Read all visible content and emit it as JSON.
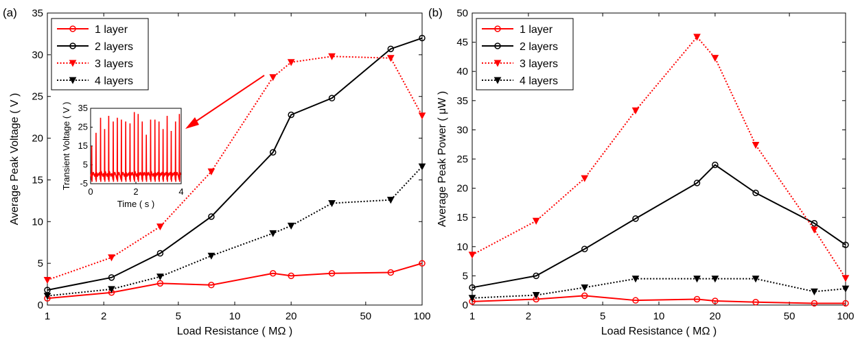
{
  "chart_data": [
    {
      "type": "line",
      "panel_label": "(a)",
      "xlabel": "Load Resistance ( MΩ )",
      "ylabel": "Average Peak Voltage ( V )",
      "xscale": "log",
      "xlim": [
        1,
        100
      ],
      "ylim": [
        0,
        35
      ],
      "x_ticks": [
        1,
        2,
        5,
        10,
        20,
        50,
        100
      ],
      "y_ticks": [
        0,
        5,
        10,
        15,
        20,
        25,
        30,
        35
      ],
      "legend_position": "top-left",
      "grid": false,
      "series": [
        {
          "name": "1 layer",
          "color": "#ff0000",
          "line": "solid",
          "marker": "circle",
          "x": [
            1,
            2.2,
            4,
            7.5,
            16,
            20,
            33,
            68,
            100
          ],
          "y": [
            0.8,
            1.5,
            2.6,
            2.4,
            3.8,
            3.5,
            3.8,
            3.9,
            5.0
          ]
        },
        {
          "name": "2 layers",
          "color": "#000000",
          "line": "solid",
          "marker": "circle",
          "x": [
            1,
            2.2,
            4,
            7.5,
            16,
            20,
            33,
            68,
            100
          ],
          "y": [
            1.8,
            3.3,
            6.2,
            10.6,
            18.3,
            22.8,
            24.8,
            30.7,
            32.0
          ]
        },
        {
          "name": "3 layers",
          "color": "#ff0000",
          "line": "dotted",
          "marker": "triangle-down",
          "x": [
            1,
            2.2,
            4,
            7.5,
            16,
            20,
            33,
            68,
            100
          ],
          "y": [
            3.0,
            5.7,
            9.4,
            16.0,
            27.3,
            29.1,
            29.8,
            29.6,
            22.7
          ]
        },
        {
          "name": "4 layers",
          "color": "#000000",
          "line": "dotted",
          "marker": "triangle-down",
          "x": [
            1,
            2.2,
            4,
            7.5,
            16,
            20,
            33,
            68,
            100
          ],
          "y": [
            1.1,
            1.9,
            3.4,
            5.9,
            8.6,
            9.5,
            12.2,
            12.6,
            16.6
          ]
        }
      ],
      "inset": {
        "xlabel": "Time ( s )",
        "ylabel": "Transient Voltage ( V )",
        "xlim": [
          0,
          4
        ],
        "ylim": [
          -5,
          35
        ],
        "x_ticks": [
          0,
          2,
          4
        ],
        "y_ticks": [
          -5,
          5,
          15,
          25,
          35
        ],
        "color": "#ff0000",
        "pulse_times": [
          0.05,
          0.24,
          0.44,
          0.62,
          0.8,
          1.0,
          1.18,
          1.36,
          1.55,
          1.74,
          1.93,
          2.1,
          2.28,
          2.46,
          2.65,
          2.84,
          3.02,
          3.2,
          3.38,
          3.56,
          3.75,
          3.92
        ],
        "pulse_peaks": [
          15,
          22,
          30,
          24,
          31,
          28,
          30,
          29,
          28,
          27,
          33,
          32,
          28,
          21,
          29,
          29,
          28,
          24,
          31,
          23,
          28,
          32
        ]
      }
    },
    {
      "type": "line",
      "panel_label": "(b)",
      "xlabel": "Load Resistance ( MΩ )",
      "ylabel": "Average Peak Power ( μW )",
      "xscale": "log",
      "xlim": [
        1,
        100
      ],
      "ylim": [
        0,
        50
      ],
      "x_ticks": [
        1,
        2,
        5,
        10,
        20,
        50,
        100
      ],
      "y_ticks": [
        0,
        5,
        10,
        15,
        20,
        25,
        30,
        35,
        40,
        45,
        50
      ],
      "legend_position": "top-left",
      "grid": false,
      "series": [
        {
          "name": "1 layer",
          "color": "#ff0000",
          "line": "solid",
          "marker": "circle",
          "x": [
            1,
            2.2,
            4,
            7.5,
            16,
            20,
            33,
            68,
            100
          ],
          "y": [
            0.6,
            1.0,
            1.6,
            0.8,
            1.0,
            0.7,
            0.5,
            0.3,
            0.3
          ]
        },
        {
          "name": "2 layers",
          "color": "#000000",
          "line": "solid",
          "marker": "circle",
          "x": [
            1,
            2.2,
            4,
            7.5,
            16,
            20,
            33,
            68,
            100
          ],
          "y": [
            3.0,
            5.0,
            9.6,
            14.8,
            20.9,
            24.0,
            19.2,
            14.0,
            10.3
          ]
        },
        {
          "name": "3 layers",
          "color": "#ff0000",
          "line": "dotted",
          "marker": "triangle-down",
          "x": [
            1,
            2.2,
            4,
            7.5,
            16,
            20,
            33,
            68,
            100
          ],
          "y": [
            8.6,
            14.4,
            21.7,
            33.3,
            45.9,
            42.3,
            27.4,
            12.9,
            4.6
          ]
        },
        {
          "name": "4 layers",
          "color": "#000000",
          "line": "dotted",
          "marker": "triangle-down",
          "x": [
            1,
            2.2,
            4,
            7.5,
            16,
            20,
            33,
            68,
            100
          ],
          "y": [
            1.2,
            1.7,
            3.0,
            4.5,
            4.5,
            4.5,
            4.5,
            2.3,
            2.8
          ]
        }
      ]
    }
  ]
}
